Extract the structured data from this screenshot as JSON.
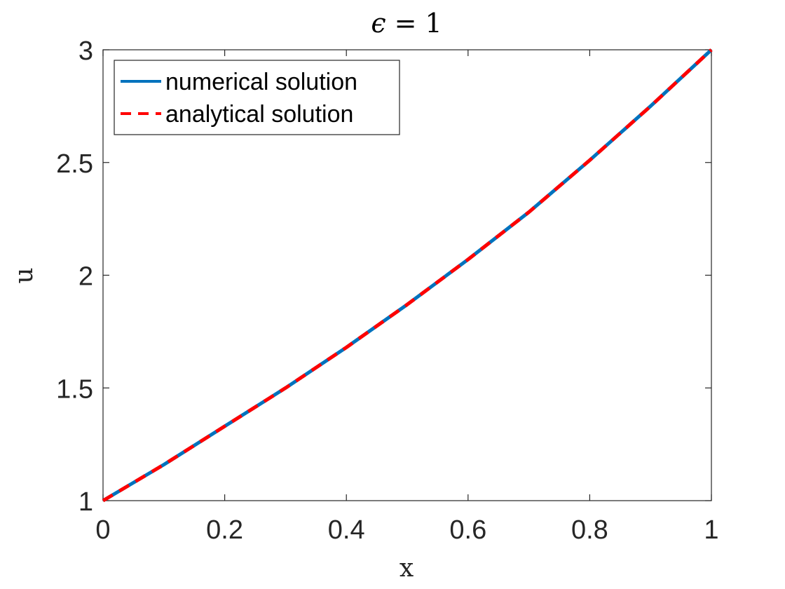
{
  "chart_data": {
    "type": "line",
    "title": "ϵ = 1",
    "title_parts": {
      "symbol": "ϵ",
      "equals": "=",
      "value": "1"
    },
    "xlabel": "x",
    "ylabel": "u",
    "xlim": [
      0,
      1
    ],
    "ylim": [
      1,
      3
    ],
    "x_ticks": [
      0,
      0.2,
      0.4,
      0.6,
      0.8,
      1
    ],
    "x_tick_labels": [
      "0",
      "0.2",
      "0.4",
      "0.6",
      "0.8",
      "1"
    ],
    "y_ticks": [
      1,
      1.5,
      2,
      2.5,
      3
    ],
    "y_tick_labels": [
      "1",
      "1.5",
      "2",
      "2.5",
      "3"
    ],
    "grid": false,
    "legend_position": "top-left",
    "x": [
      0,
      0.1,
      0.2,
      0.3,
      0.4,
      0.5,
      0.6,
      0.7,
      0.8,
      0.9,
      1.0
    ],
    "series": [
      {
        "name": "numerical solution",
        "style": "solid",
        "color": "#0072BD",
        "values": [
          1.0,
          1.16,
          1.33,
          1.5,
          1.68,
          1.87,
          2.07,
          2.28,
          2.51,
          2.75,
          3.0
        ]
      },
      {
        "name": "analytical solution",
        "style": "dashed",
        "color": "#FF0000",
        "values": [
          1.0,
          1.16,
          1.33,
          1.5,
          1.68,
          1.87,
          2.07,
          2.28,
          2.51,
          2.75,
          3.0
        ]
      }
    ]
  }
}
